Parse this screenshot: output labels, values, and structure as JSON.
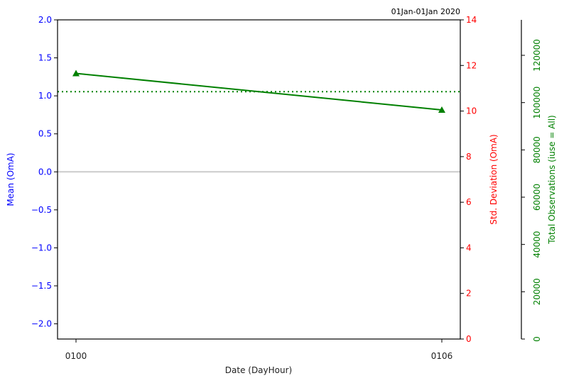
{
  "chart_data": {
    "type": "line",
    "title": "01Jan-01Jan 2020",
    "xlabel": "Date (DayHour)",
    "x": [
      "0100",
      "0106"
    ],
    "axes": {
      "left": {
        "label": "Mean (OmA)",
        "ylim": [
          -2.2,
          2.0
        ],
        "ticks": [
          -2.0,
          -1.5,
          -1.0,
          -0.5,
          0.0,
          0.5,
          1.0,
          1.5,
          2.0
        ],
        "tick_labels": [
          "−2.0",
          "−1.5",
          "−1.0",
          "−0.5",
          "0.0",
          "0.5",
          "1.0",
          "1.5",
          "2.0"
        ],
        "color": "#0000ff"
      },
      "right": {
        "label": "Std. Deviation (OmA)",
        "ylim": [
          0,
          14
        ],
        "ticks": [
          0,
          2,
          4,
          6,
          8,
          10,
          12,
          14
        ],
        "tick_labels": [
          "0",
          "2",
          "4",
          "6",
          "8",
          "10",
          "12",
          "14"
        ],
        "color": "#ff0000"
      },
      "far_right": {
        "label": "Total Observations (iuse = All)",
        "ylim": [
          0,
          135000
        ],
        "ticks": [
          0,
          20000,
          40000,
          60000,
          80000,
          100000,
          120000
        ],
        "tick_labels": [
          "0",
          "20000",
          "40000",
          "60000",
          "80000",
          "100000",
          "120000"
        ],
        "color": "#008000"
      }
    },
    "series": [
      {
        "axis": "right",
        "color": "#008000",
        "marker": "triangle",
        "style": "solid",
        "values": [
          11.65,
          10.05
        ]
      },
      {
        "axis": "right",
        "color": "#008000",
        "style": "dotted",
        "values": [
          10.85,
          10.85
        ],
        "extends_full_width": true
      }
    ],
    "zero_line": {
      "axis": "left",
      "value": 0.0,
      "color": "#cccccc"
    },
    "grid": false
  }
}
